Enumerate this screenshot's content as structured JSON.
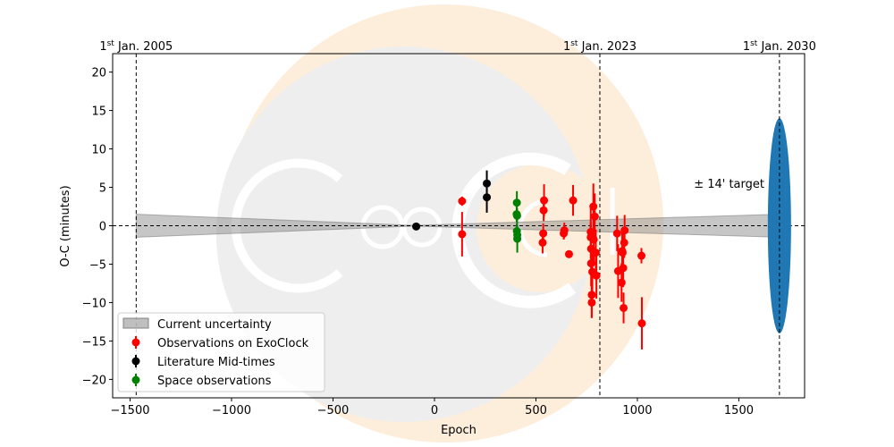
{
  "chart_data": {
    "type": "scatter",
    "xlabel": "Epoch",
    "ylabel": "O-C (minutes)",
    "xlim": [
      -1586,
      1824
    ],
    "ylim": [
      -22.4,
      22.4
    ],
    "xticks": [
      -1500,
      -1000,
      -500,
      0,
      500,
      1000,
      1500
    ],
    "yticks": [
      -20,
      -15,
      -10,
      -5,
      0,
      5,
      10,
      15,
      20
    ],
    "xtick_labels": [
      "−1500",
      "−1000",
      "−500",
      "0",
      "500",
      "1000",
      "1500"
    ],
    "ytick_labels": [
      "−20",
      "−15",
      "−10",
      "−5",
      "0",
      "5",
      "10",
      "15",
      "20"
    ],
    "date_markers": [
      {
        "epoch": -1470,
        "sup": "st",
        "pre": "1",
        "label": " Jan. 2005"
      },
      {
        "epoch": 815,
        "sup": "st",
        "pre": "1",
        "label": " Jan. 2023"
      },
      {
        "epoch": 1700,
        "sup": "st",
        "pre": "1",
        "label": " Jan. 2030"
      }
    ],
    "target_annotation": "± 14' target",
    "target": {
      "epoch": 1700,
      "halfrange": 14,
      "color": "#1f77b4"
    },
    "uncertainty": {
      "x_start": -1470,
      "x_end": 1700,
      "x_mid": -100,
      "halfwidth_start": 1.5,
      "halfwidth_end": 1.5
    },
    "legend": {
      "placement": "lower-left",
      "entries": [
        "Current uncertainty",
        "Observations on ExoClock",
        "Literature Mid-times",
        "Space observations"
      ]
    },
    "series": [
      {
        "name": "Observations on ExoClock",
        "color": "#ff0000",
        "points": [
          [
            136,
            3.2,
            0.6
          ],
          [
            136,
            -1.1,
            2.9
          ],
          [
            533,
            -2.2,
            1.4
          ],
          [
            536,
            -1.0,
            1.3
          ],
          [
            538,
            2.0,
            1.4
          ],
          [
            540,
            3.3,
            2.1
          ],
          [
            637,
            -1.0,
            0.8
          ],
          [
            640,
            -0.6,
            1.0
          ],
          [
            663,
            -3.7,
            0.5
          ],
          [
            683,
            3.3,
            2.0
          ],
          [
            770,
            -0.8,
            3.5
          ],
          [
            770,
            -1.5,
            2.0
          ],
          [
            772,
            -3.0,
            2.5
          ],
          [
            772,
            -4.9,
            3.0
          ],
          [
            775,
            -9.0,
            3.0
          ],
          [
            775,
            -10.0,
            2.0
          ],
          [
            778,
            -6.0,
            3.0
          ],
          [
            783,
            2.5,
            3.0
          ],
          [
            785,
            -1.8,
            3.0
          ],
          [
            790,
            1.2,
            3.0
          ],
          [
            795,
            -3.5,
            3.0
          ],
          [
            798,
            -6.5,
            3.0
          ],
          [
            900,
            -1.0,
            2.3
          ],
          [
            905,
            -5.9,
            3.5
          ],
          [
            922,
            -7.4,
            2.5
          ],
          [
            925,
            -3.3,
            2.5
          ],
          [
            927,
            -3.5,
            2.5
          ],
          [
            930,
            -5.5,
            2.5
          ],
          [
            932,
            -10.7,
            2.0
          ],
          [
            935,
            -2.2,
            2.0
          ],
          [
            937,
            -0.6,
            2.0
          ],
          [
            1020,
            -3.9,
            1.0
          ],
          [
            1022,
            -12.7,
            3.4
          ]
        ]
      },
      {
        "name": "Literature Mid-times",
        "color": "#000000",
        "points": [
          [
            -90,
            -0.1,
            0.2
          ],
          [
            258,
            5.5,
            1.7
          ],
          [
            258,
            3.7,
            2.0
          ]
        ]
      },
      {
        "name": "Space observations",
        "color": "#008000",
        "points": [
          [
            406,
            3.0,
            1.5
          ],
          [
            405,
            1.5,
            1.0
          ],
          [
            407,
            1.3,
            1.0
          ],
          [
            406,
            -0.7,
            1.0
          ],
          [
            408,
            -1.2,
            1.0
          ],
          [
            408,
            -1.7,
            1.8
          ]
        ]
      }
    ]
  }
}
